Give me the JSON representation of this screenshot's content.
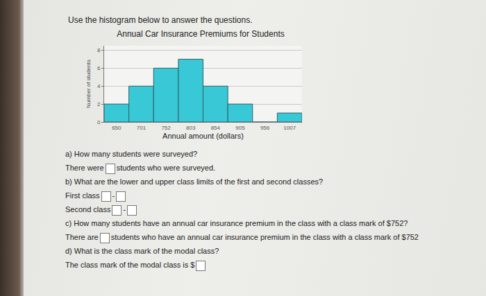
{
  "instruction": "Use the histogram below to answer the questions.",
  "chart_data": {
    "type": "bar",
    "title": "Annual Car Insurance Premiums for Students",
    "x": [
      650,
      701,
      752,
      803,
      854,
      905,
      956,
      1007
    ],
    "values": [
      2,
      4,
      6,
      7,
      4,
      2,
      0,
      1
    ],
    "color": "#38c8d6",
    "xlabel": "Annual amount (dollars)",
    "ylabel": "Number of students",
    "xlim": [
      624.5,
      1032.5
    ],
    "xticks": [
      650,
      701,
      752,
      803,
      854,
      905,
      956,
      1007
    ],
    "ylim": [
      0,
      8.5
    ],
    "yticks": [
      0,
      2,
      4,
      6,
      8
    ],
    "grid": true
  },
  "questions": [
    {
      "prompt": "a) How many students were surveyed?",
      "answers": [
        [
          "There were",
          null,
          "students who were surveyed."
        ]
      ]
    },
    {
      "prompt": "b) What are the lower and upper class limits of the first and second classes?",
      "answers": [
        [
          "First class",
          null,
          "-",
          null
        ],
        [
          "Second class",
          null,
          "-",
          null
        ]
      ]
    },
    {
      "prompt": "c) How many students have an annual car insurance premium in the class with a class mark of $752?",
      "answers": [
        [
          "There are",
          null,
          "students who have an annual car insurance premium in the class with a class mark of $752"
        ]
      ]
    },
    {
      "prompt": "d) What is the class mark of the modal class?",
      "answers": [
        [
          "The class mark of the modal class is $",
          null
        ]
      ]
    }
  ]
}
